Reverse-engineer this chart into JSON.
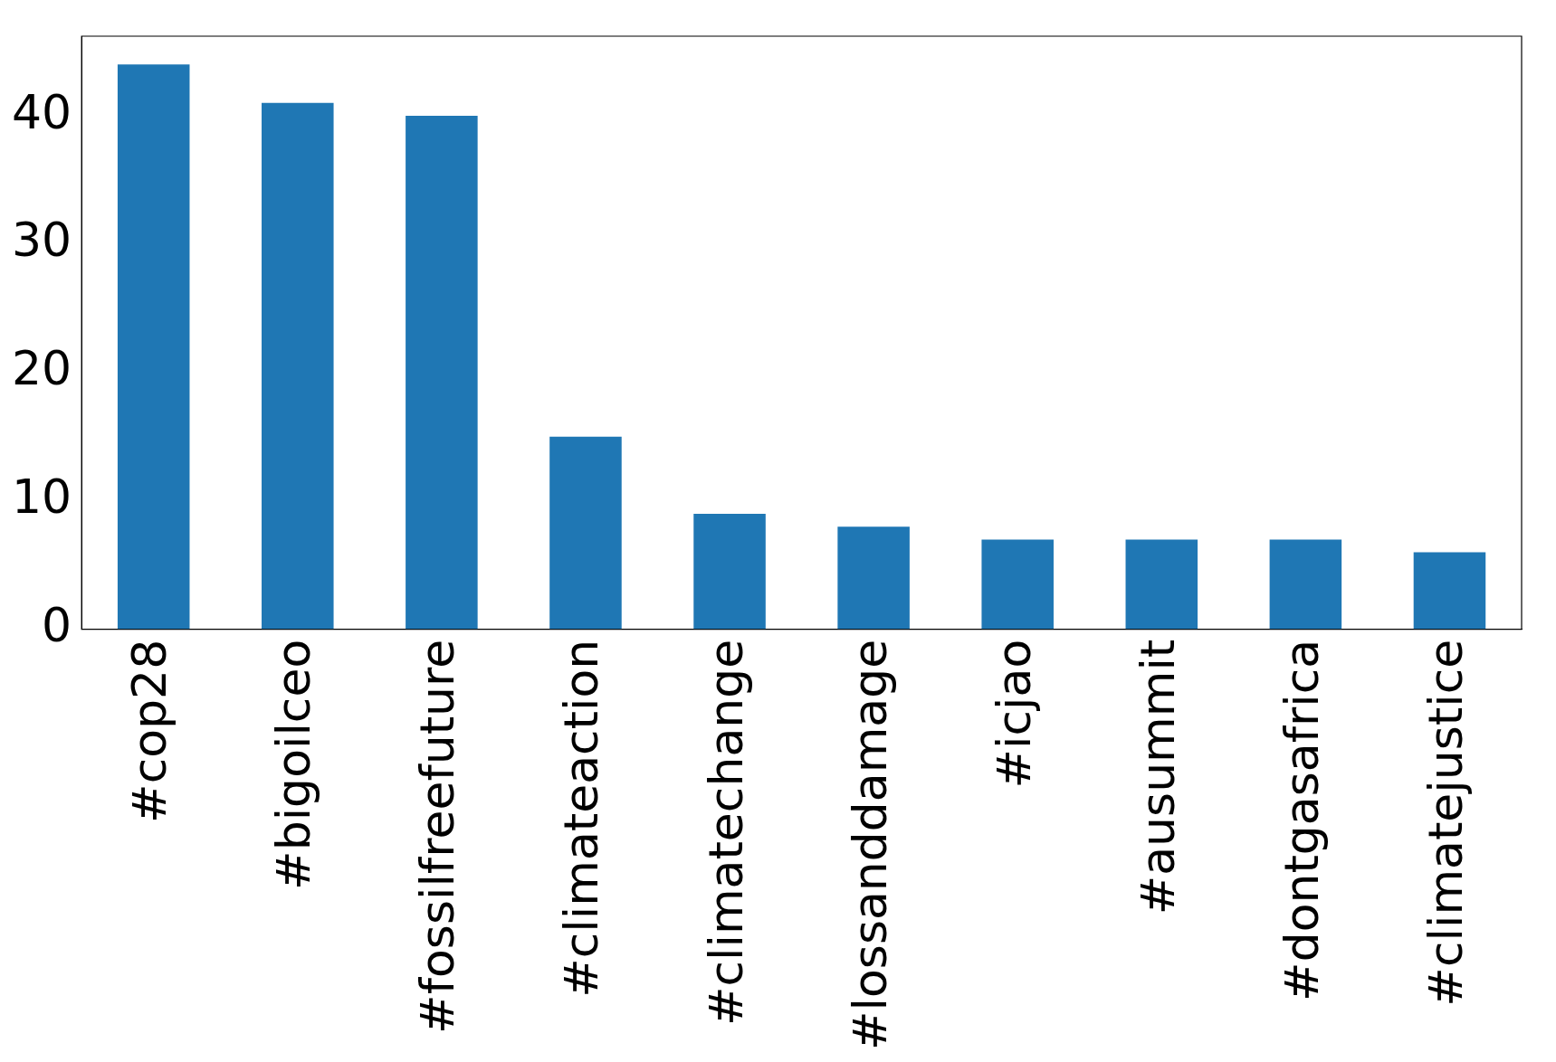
{
  "chart_data": {
    "type": "bar",
    "categories": [
      "#cop28",
      "#bigoilceo",
      "#fossilfreefuture",
      "#climateaction",
      "#climatechange",
      "#lossanddamage",
      "#icjao",
      "#ausummit",
      "#dontgasafrica",
      "#climatejustice"
    ],
    "values": [
      44,
      41,
      40,
      15,
      9,
      8,
      7,
      7,
      7,
      6
    ],
    "color": "#1f77b4",
    "ylim": [
      0,
      46.2
    ],
    "yticks": [
      0,
      10,
      20,
      30,
      40
    ],
    "grid": false,
    "legend": false
  }
}
